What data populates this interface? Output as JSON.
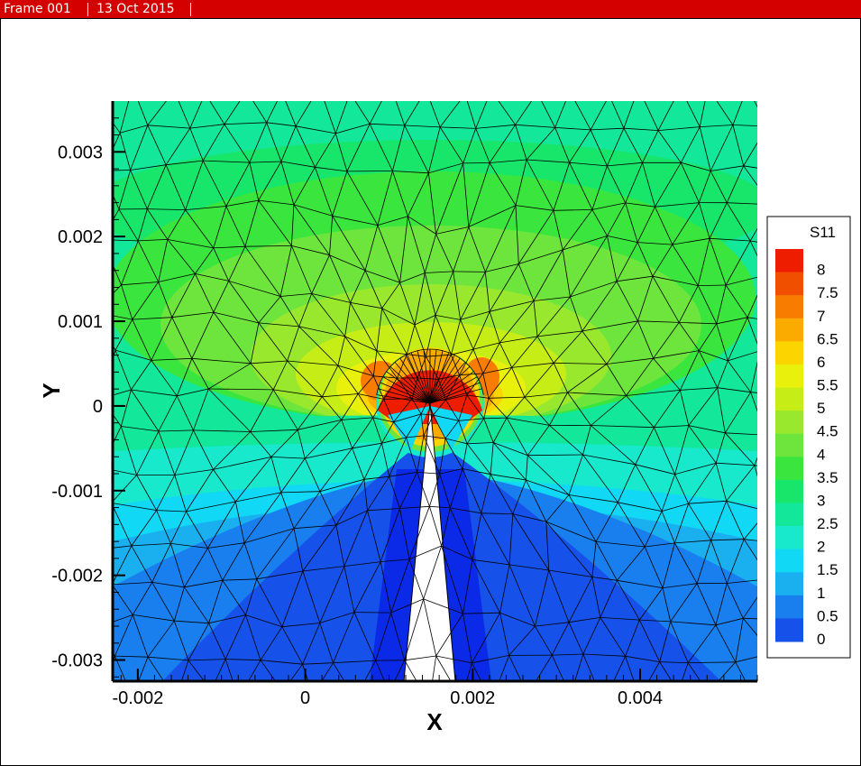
{
  "header": {
    "frame_label": "Frame 001",
    "date_label": "13 Oct 2015",
    "bar_color": "#d40000"
  },
  "chart_data": {
    "type": "heatmap",
    "xlabel": "X",
    "ylabel": "Y",
    "xlim": [
      -0.0023,
      0.0054
    ],
    "ylim": [
      -0.00325,
      0.0036
    ],
    "x_ticks": [
      -0.002,
      0,
      0.002,
      0.004
    ],
    "x_tick_labels": [
      "-0.002",
      "0",
      "0.002",
      "0.004"
    ],
    "y_ticks": [
      0.003,
      0.002,
      0.001,
      0,
      -0.001,
      -0.002,
      -0.003
    ],
    "y_tick_labels": [
      "0.003",
      "0.002",
      "0.001",
      "0",
      "-0.001",
      "-0.002",
      "-0.003"
    ],
    "grid": false,
    "mesh": "triangular",
    "legend": {
      "title": "S11",
      "placement": "right",
      "levels": [
        {
          "label": "8",
          "color": "#ee1d00"
        },
        {
          "label": "7.5",
          "color": "#f04f00"
        },
        {
          "label": "7",
          "color": "#f77c00"
        },
        {
          "label": "6.5",
          "color": "#fbab00"
        },
        {
          "label": "6",
          "color": "#fcd500"
        },
        {
          "label": "5.5",
          "color": "#e8f00c"
        },
        {
          "label": "5",
          "color": "#c6ee16"
        },
        {
          "label": "4.5",
          "color": "#99e82d"
        },
        {
          "label": "4",
          "color": "#6ee53c"
        },
        {
          "label": "3.5",
          "color": "#3ae63d"
        },
        {
          "label": "3",
          "color": "#17e66b"
        },
        {
          "label": "2.5",
          "color": "#12e79a"
        },
        {
          "label": "2",
          "color": "#18e8cc"
        },
        {
          "label": "1.5",
          "color": "#10d8f5"
        },
        {
          "label": "1",
          "color": "#1ab0f0"
        },
        {
          "label": "0.5",
          "color": "#1a7fee"
        },
        {
          "label": "0",
          "color": "#1652ea"
        }
      ],
      "bottom_color": "#0a2ae8"
    }
  }
}
